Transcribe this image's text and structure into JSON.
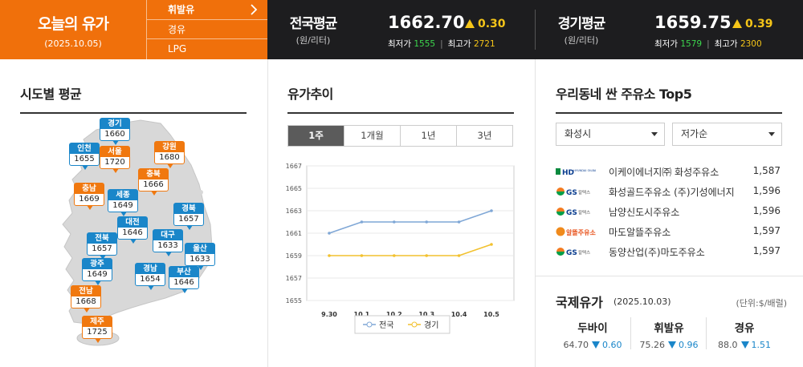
{
  "today": {
    "title": "오늘의 유가",
    "date": "(2025.10.05)"
  },
  "fuel_menu": [
    "휘발유",
    "경유",
    "LPG"
  ],
  "national": {
    "label": "전국평균",
    "unit": "(원/리터)",
    "price": "1662.70",
    "change": "0.30",
    "min_label": "최저가",
    "min": "1555",
    "max_label": "최고가",
    "max": "2721"
  },
  "gyeonggi": {
    "label": "경기평균",
    "unit": "(원/리터)",
    "price": "1659.75",
    "change": "0.39",
    "min_label": "최저가",
    "min": "1579",
    "max_label": "최고가",
    "max": "2300"
  },
  "regions": {
    "title": "시도별 평균",
    "items": [
      {
        "name": "경기",
        "value": "1660",
        "color": "blue"
      },
      {
        "name": "인천",
        "value": "1655",
        "color": "blue"
      },
      {
        "name": "서울",
        "value": "1720",
        "color": "orange"
      },
      {
        "name": "강원",
        "value": "1680",
        "color": "orange"
      },
      {
        "name": "충북",
        "value": "1666",
        "color": "orange"
      },
      {
        "name": "충남",
        "value": "1669",
        "color": "orange"
      },
      {
        "name": "세종",
        "value": "1649",
        "color": "blue"
      },
      {
        "name": "대전",
        "value": "1646",
        "color": "blue"
      },
      {
        "name": "경북",
        "value": "1657",
        "color": "blue"
      },
      {
        "name": "전북",
        "value": "1657",
        "color": "blue"
      },
      {
        "name": "대구",
        "value": "1633",
        "color": "blue"
      },
      {
        "name": "울산",
        "value": "1633",
        "color": "blue"
      },
      {
        "name": "광주",
        "value": "1649",
        "color": "blue"
      },
      {
        "name": "경남",
        "value": "1654",
        "color": "blue"
      },
      {
        "name": "부산",
        "value": "1646",
        "color": "blue"
      },
      {
        "name": "전남",
        "value": "1668",
        "color": "orange"
      },
      {
        "name": "제주",
        "value": "1725",
        "color": "orange"
      }
    ]
  },
  "trend": {
    "title": "유가추이",
    "tabs": [
      "1주",
      "1개월",
      "1년",
      "3년"
    ],
    "active_tab": 0
  },
  "chart_data": {
    "type": "line",
    "categories": [
      "9.30",
      "10.1",
      "10.2",
      "10.3",
      "10.4",
      "10.5"
    ],
    "series": [
      {
        "name": "전국",
        "values": [
          1661,
          1662,
          1662,
          1662,
          1662,
          1663
        ],
        "color": "#7fa7d6"
      },
      {
        "name": "경기",
        "values": [
          1659,
          1659,
          1659,
          1659,
          1659,
          1660
        ],
        "color": "#f2c12e"
      }
    ],
    "yticks": [
      1655,
      1657,
      1659,
      1661,
      1663,
      1665,
      1667
    ],
    "ylim": [
      1655,
      1667
    ],
    "grid": true,
    "legend": "bottom"
  },
  "cheap": {
    "title": "우리동네 싼 주유소 Top5",
    "region_select": "화성시",
    "sort_select": "저가순",
    "stations": [
      {
        "brand": "HD",
        "name": "이케이에너지㈜ 화성주유소",
        "price": "1,587"
      },
      {
        "brand": "GS",
        "name": "화성골드주유소 (주)기성에너지",
        "price": "1,596"
      },
      {
        "brand": "GS",
        "name": "남양신도시주유소",
        "price": "1,596"
      },
      {
        "brand": "ALDDL",
        "name": "마도알뜰주유소",
        "price": "1,597"
      },
      {
        "brand": "GS",
        "name": "동양산업(주)마도주유소",
        "price": "1,597"
      }
    ],
    "brand_text": {
      "hd": "HD",
      "hd_sub": "HYUNDAI OILBANK",
      "gs": "GS",
      "gs_sub": "칼텍스",
      "alddl": "알뜰주유소"
    }
  },
  "intl": {
    "title": "국제유가",
    "date": "(2025.10.03)",
    "unit": "(단위:$/배럴)",
    "items": [
      {
        "name": "두바이",
        "value": "64.70",
        "change": "0.60"
      },
      {
        "name": "휘발유",
        "value": "75.26",
        "change": "0.96"
      },
      {
        "name": "경유",
        "value": "88.0",
        "change": "1.51"
      }
    ]
  }
}
